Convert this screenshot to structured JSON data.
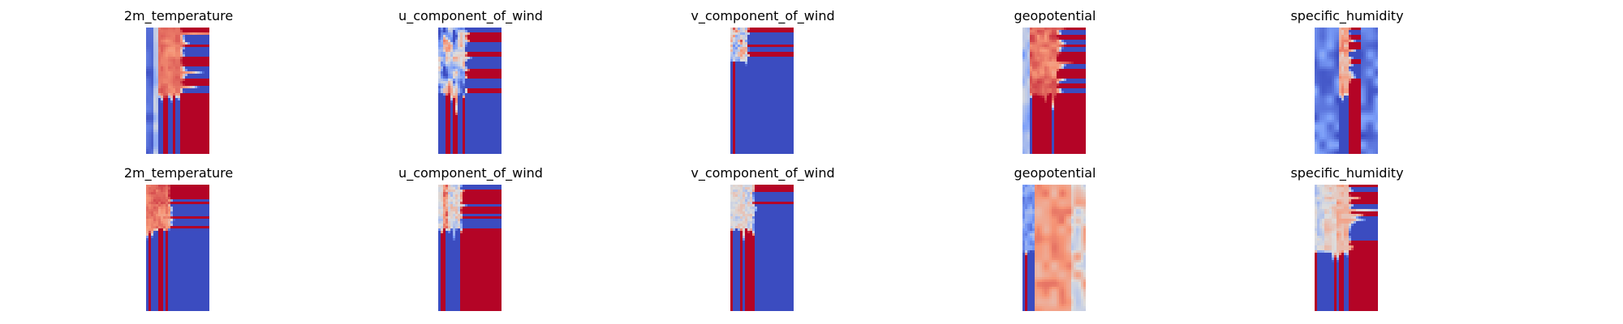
{
  "colors": {
    "colormap": "coolwarm",
    "cold": "#3b4cc0",
    "neutral": "#dddddd",
    "warm": "#b40426"
  },
  "chart_data": [
    {
      "type": "heatmap",
      "row": 1,
      "col": 1,
      "title": "2m_temperature",
      "pattern": "temperature",
      "seed": 11,
      "grid": false,
      "axes": "off"
    },
    {
      "type": "heatmap",
      "row": 1,
      "col": 2,
      "title": "u_component_of_wind",
      "pattern": "u_wind",
      "seed": 23,
      "grid": false,
      "axes": "off"
    },
    {
      "type": "heatmap",
      "row": 1,
      "col": 3,
      "title": "v_component_of_wind",
      "pattern": "v_wind",
      "seed": 37,
      "grid": false,
      "axes": "off"
    },
    {
      "type": "heatmap",
      "row": 1,
      "col": 4,
      "title": "geopotential",
      "pattern": "geopotential",
      "seed": 41,
      "grid": false,
      "axes": "off"
    },
    {
      "type": "heatmap",
      "row": 1,
      "col": 5,
      "title": "specific_humidity",
      "pattern": "humidity",
      "seed": 53,
      "grid": false,
      "axes": "off"
    },
    {
      "type": "heatmap",
      "row": 2,
      "col": 1,
      "title": "2m_temperature",
      "pattern": "temperature_pred",
      "seed": 61,
      "grid": false,
      "axes": "off"
    },
    {
      "type": "heatmap",
      "row": 2,
      "col": 2,
      "title": "u_component_of_wind",
      "pattern": "u_wind_pred",
      "seed": 71,
      "grid": false,
      "axes": "off"
    },
    {
      "type": "heatmap",
      "row": 2,
      "col": 3,
      "title": "v_component_of_wind",
      "pattern": "v_wind_pred",
      "seed": 83,
      "grid": false,
      "axes": "off"
    },
    {
      "type": "heatmap",
      "row": 2,
      "col": 4,
      "title": "geopotential",
      "pattern": "geopotential_pred",
      "seed": 97,
      "grid": false,
      "axes": "off"
    },
    {
      "type": "heatmap",
      "row": 2,
      "col": 5,
      "title": "specific_humidity",
      "pattern": "humidity_pred",
      "seed": 101,
      "grid": false,
      "axes": "off"
    }
  ]
}
